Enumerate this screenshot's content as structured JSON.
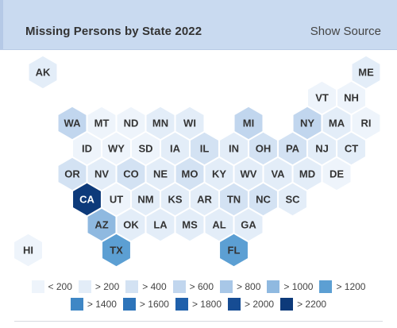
{
  "header": {
    "title": "Missing Persons by State 2022",
    "source_label": "Show Source"
  },
  "colors": {
    "header_bg": "#c9daf0",
    "dark_text": "#333333",
    "light_text": "#ffffff",
    "scale": [
      "#eef4fb",
      "#e3edf8",
      "#d3e2f3",
      "#c1d6ee",
      "#a8c7e7",
      "#8fb9e0",
      "#5c9fd3",
      "#3f87c5",
      "#2d74ba",
      "#1f60ab",
      "#164c93",
      "#0d3a7a"
    ]
  },
  "chart_data": {
    "type": "hex-tile-map",
    "title": "Missing Persons by State 2022",
    "legend": [
      {
        "label": "< 200",
        "bin": 0
      },
      {
        "label": "> 200",
        "bin": 1
      },
      {
        "label": "> 400",
        "bin": 2
      },
      {
        "label": "> 600",
        "bin": 3
      },
      {
        "label": "> 800",
        "bin": 4
      },
      {
        "label": "> 1000",
        "bin": 5
      },
      {
        "label": "> 1200",
        "bin": 6
      },
      {
        "label": "> 1400",
        "bin": 7
      },
      {
        "label": "> 1600",
        "bin": 8
      },
      {
        "label": "> 1800",
        "bin": 9
      },
      {
        "label": "> 2000",
        "bin": 10
      },
      {
        "label": "> 2200",
        "bin": 11
      }
    ],
    "states": [
      {
        "abbr": "AK",
        "row": 0,
        "col": 0,
        "bin": 1
      },
      {
        "abbr": "ME",
        "row": 0,
        "col": 11,
        "bin": 1
      },
      {
        "abbr": "VT",
        "row": 1,
        "col": 9.5,
        "bin": 0
      },
      {
        "abbr": "NH",
        "row": 1,
        "col": 10.5,
        "bin": 0
      },
      {
        "abbr": "WA",
        "row": 2,
        "col": 1,
        "bin": 3
      },
      {
        "abbr": "MT",
        "row": 2,
        "col": 2,
        "bin": 0
      },
      {
        "abbr": "ND",
        "row": 2,
        "col": 3,
        "bin": 0
      },
      {
        "abbr": "MN",
        "row": 2,
        "col": 4,
        "bin": 1
      },
      {
        "abbr": "WI",
        "row": 2,
        "col": 5,
        "bin": 1
      },
      {
        "abbr": "MI",
        "row": 2,
        "col": 7,
        "bin": 3
      },
      {
        "abbr": "NY",
        "row": 2,
        "col": 9,
        "bin": 3
      },
      {
        "abbr": "MA",
        "row": 2,
        "col": 10,
        "bin": 1
      },
      {
        "abbr": "RI",
        "row": 2,
        "col": 11,
        "bin": 0
      },
      {
        "abbr": "ID",
        "row": 3,
        "col": 1.5,
        "bin": 0
      },
      {
        "abbr": "WY",
        "row": 3,
        "col": 2.5,
        "bin": 0
      },
      {
        "abbr": "SD",
        "row": 3,
        "col": 3.5,
        "bin": 0
      },
      {
        "abbr": "IA",
        "row": 3,
        "col": 4.5,
        "bin": 1
      },
      {
        "abbr": "IL",
        "row": 3,
        "col": 5.5,
        "bin": 2
      },
      {
        "abbr": "IN",
        "row": 3,
        "col": 6.5,
        "bin": 1
      },
      {
        "abbr": "OH",
        "row": 3,
        "col": 7.5,
        "bin": 2
      },
      {
        "abbr": "PA",
        "row": 3,
        "col": 8.5,
        "bin": 2
      },
      {
        "abbr": "NJ",
        "row": 3,
        "col": 9.5,
        "bin": 1
      },
      {
        "abbr": "CT",
        "row": 3,
        "col": 10.5,
        "bin": 1
      },
      {
        "abbr": "OR",
        "row": 4,
        "col": 1,
        "bin": 2
      },
      {
        "abbr": "NV",
        "row": 4,
        "col": 2,
        "bin": 1
      },
      {
        "abbr": "CO",
        "row": 4,
        "col": 3,
        "bin": 2
      },
      {
        "abbr": "NE",
        "row": 4,
        "col": 4,
        "bin": 1
      },
      {
        "abbr": "MO",
        "row": 4,
        "col": 5,
        "bin": 2
      },
      {
        "abbr": "KY",
        "row": 4,
        "col": 6,
        "bin": 1
      },
      {
        "abbr": "WV",
        "row": 4,
        "col": 7,
        "bin": 1
      },
      {
        "abbr": "VA",
        "row": 4,
        "col": 8,
        "bin": 1
      },
      {
        "abbr": "MD",
        "row": 4,
        "col": 9,
        "bin": 1
      },
      {
        "abbr": "DE",
        "row": 4,
        "col": 10,
        "bin": 0
      },
      {
        "abbr": "CA",
        "row": 5,
        "col": 1.5,
        "bin": 11
      },
      {
        "abbr": "UT",
        "row": 5,
        "col": 2.5,
        "bin": 0
      },
      {
        "abbr": "NM",
        "row": 5,
        "col": 3.5,
        "bin": 1
      },
      {
        "abbr": "KS",
        "row": 5,
        "col": 4.5,
        "bin": 1
      },
      {
        "abbr": "AR",
        "row": 5,
        "col": 5.5,
        "bin": 1
      },
      {
        "abbr": "TN",
        "row": 5,
        "col": 6.5,
        "bin": 2
      },
      {
        "abbr": "NC",
        "row": 5,
        "col": 7.5,
        "bin": 2
      },
      {
        "abbr": "SC",
        "row": 5,
        "col": 8.5,
        "bin": 1
      },
      {
        "abbr": "AZ",
        "row": 6,
        "col": 2,
        "bin": 5
      },
      {
        "abbr": "OK",
        "row": 6,
        "col": 3,
        "bin": 1
      },
      {
        "abbr": "LA",
        "row": 6,
        "col": 4,
        "bin": 1
      },
      {
        "abbr": "MS",
        "row": 6,
        "col": 5,
        "bin": 1
      },
      {
        "abbr": "AL",
        "row": 6,
        "col": 6,
        "bin": 1
      },
      {
        "abbr": "GA",
        "row": 6,
        "col": 7,
        "bin": 1
      },
      {
        "abbr": "TX",
        "row": 7,
        "col": 2.5,
        "bin": 6
      },
      {
        "abbr": "FL",
        "row": 7,
        "col": 6.5,
        "bin": 6
      },
      {
        "abbr": "HI",
        "row": 7,
        "col": -0.5,
        "bin": 0
      }
    ]
  }
}
